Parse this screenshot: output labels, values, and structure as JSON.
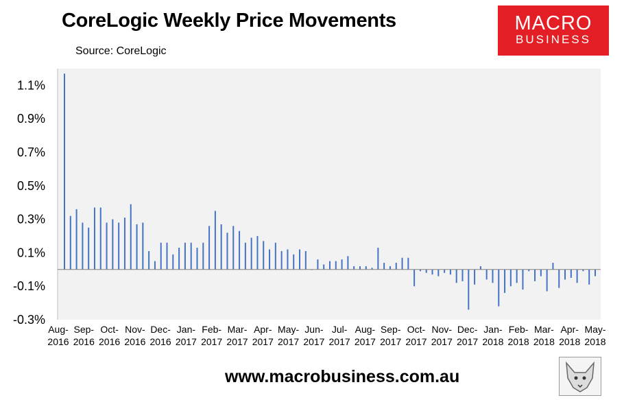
{
  "title": "CoreLogic Weekly Price Movements",
  "subtitle": "Source: CoreLogic",
  "logo": {
    "line1": "MACRO",
    "line2": "BUSINESS"
  },
  "footer": "www.macrobusiness.com.au",
  "colors": {
    "bar": "#4472c4",
    "plot_bg": "#f2f2f2",
    "logo_bg": "#e31e24"
  },
  "chart_data": {
    "type": "bar",
    "title": "CoreLogic Weekly Price Movements",
    "ylim": [
      -0.3,
      1.2
    ],
    "yticks": [
      "1.1%",
      "0.9%",
      "0.7%",
      "0.5%",
      "0.3%",
      "0.1%",
      "-0.1%",
      "-0.3%"
    ],
    "ytick_values": [
      1.1,
      0.9,
      0.7,
      0.5,
      0.3,
      0.1,
      -0.1,
      -0.3
    ],
    "xlabels": [
      [
        "Aug-",
        "2016"
      ],
      [
        "Sep-",
        "2016"
      ],
      [
        "Oct-",
        "2016"
      ],
      [
        "Nov-",
        "2016"
      ],
      [
        "Dec-",
        "2016"
      ],
      [
        "Jan-",
        "2017"
      ],
      [
        "Feb-",
        "2017"
      ],
      [
        "Mar-",
        "2017"
      ],
      [
        "Apr-",
        "2017"
      ],
      [
        "May-",
        "2017"
      ],
      [
        "Jun-",
        "2017"
      ],
      [
        "Jul-",
        "2017"
      ],
      [
        "Aug-",
        "2017"
      ],
      [
        "Sep-",
        "2017"
      ],
      [
        "Oct-",
        "2017"
      ],
      [
        "Nov-",
        "2017"
      ],
      [
        "Dec-",
        "2017"
      ],
      [
        "Jan-",
        "2018"
      ],
      [
        "Feb-",
        "2018"
      ],
      [
        "Mar-",
        "2018"
      ],
      [
        "Apr-",
        "2018"
      ],
      [
        "May-",
        "2018"
      ]
    ],
    "values": [
      1.17,
      0.32,
      0.36,
      0.28,
      0.25,
      0.37,
      0.37,
      0.28,
      0.3,
      0.28,
      0.31,
      0.39,
      0.27,
      0.28,
      0.11,
      0.05,
      0.16,
      0.16,
      0.09,
      0.13,
      0.16,
      0.16,
      0.13,
      0.16,
      0.26,
      0.35,
      0.27,
      0.22,
      0.26,
      0.23,
      0.16,
      0.19,
      0.2,
      0.17,
      0.12,
      0.16,
      0.11,
      0.12,
      0.09,
      0.12,
      0.11,
      0.0,
      0.06,
      0.03,
      0.05,
      0.05,
      0.06,
      0.08,
      0.02,
      0.02,
      0.02,
      0.01,
      0.13,
      0.04,
      0.02,
      0.04,
      0.07,
      0.07,
      -0.1,
      -0.01,
      -0.02,
      -0.03,
      -0.04,
      -0.02,
      -0.03,
      -0.08,
      -0.07,
      -0.24,
      -0.09,
      0.02,
      -0.06,
      -0.08,
      -0.22,
      -0.14,
      -0.1,
      -0.08,
      -0.12,
      -0.01,
      -0.07,
      -0.04,
      -0.13,
      0.04,
      -0.11,
      -0.06,
      -0.05,
      -0.08,
      -0.01,
      -0.09,
      -0.04
    ],
    "grid": false,
    "legend": "none"
  }
}
